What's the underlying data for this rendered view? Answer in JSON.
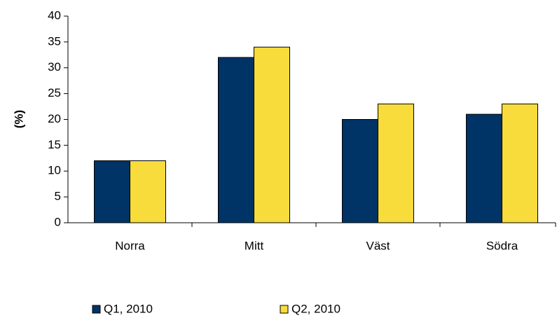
{
  "chart_data": {
    "type": "bar",
    "y_label": "(%)",
    "categories": [
      "Norra",
      "Mitt",
      "Väst",
      "Södra"
    ],
    "series": [
      {
        "name": "Q1, 2010",
        "color": "#003366",
        "values": [
          12,
          32,
          20,
          21
        ]
      },
      {
        "name": "Q2, 2010",
        "color": "#f7dc3c",
        "values": [
          12,
          34,
          23,
          23
        ]
      }
    ],
    "ylim": [
      0,
      40
    ],
    "yticks": [
      0,
      5,
      10,
      15,
      20,
      25,
      30,
      35,
      40
    ],
    "grid": false,
    "legend": "bottom"
  }
}
